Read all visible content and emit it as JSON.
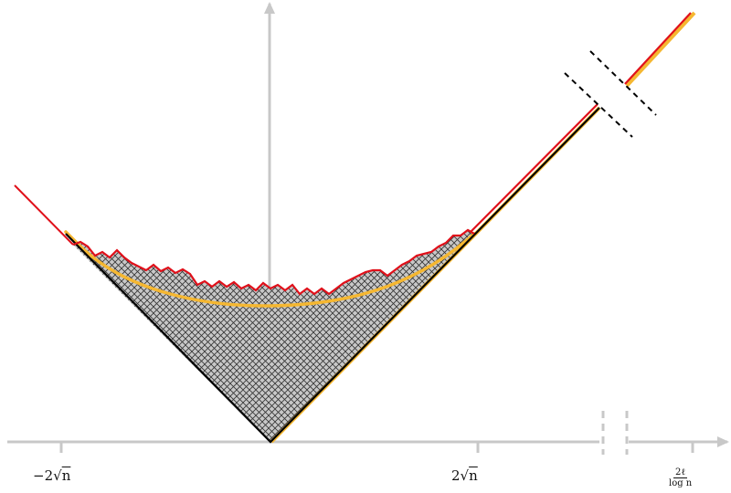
{
  "figure": {
    "tick_labels": {
      "left": {
        "coef": "−2",
        "radicand": "n"
      },
      "right": {
        "coef": "2",
        "radicand": "n"
      },
      "far": {
        "numerator": "2ℓ",
        "denominator": "log n"
      }
    },
    "colors": {
      "axis": "#c8c8c8",
      "outline": "#000000",
      "fill": "#c8c8c8",
      "hatch": "#333333",
      "curve_limit": "#f5b731",
      "curve_sample": "#e0101a",
      "break_marks": "#000000"
    }
  }
}
